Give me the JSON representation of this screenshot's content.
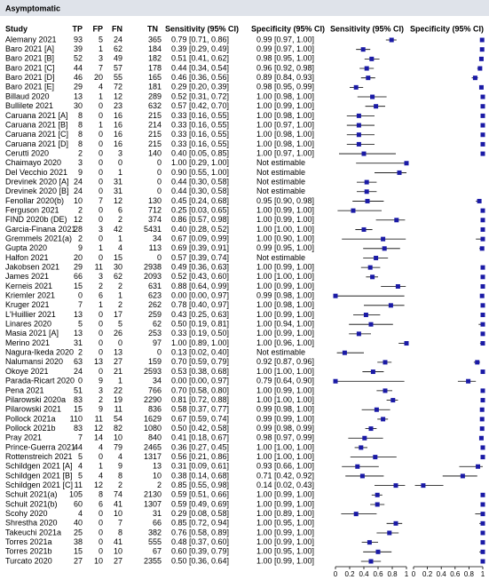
{
  "title": "Asymptomatic",
  "headers": {
    "study": "Study",
    "tp": "TP",
    "fp": "FP",
    "fn": "FN",
    "tn": "TN",
    "sens": "Sensitivity (95% CI)",
    "spec": "Specificity (95% CI)",
    "sens_plot": "Sensitivity (95% CI)",
    "spec_plot": "Specificity (95% CI)"
  },
  "axis": {
    "xlim": [
      0,
      1
    ],
    "xticks": [
      0,
      0.2,
      0.4,
      0.6,
      0.8,
      1
    ]
  },
  "rows": [
    {
      "study": "Alemany 2021",
      "tp": 93,
      "fp": 5,
      "fn": 24,
      "tn": 365,
      "sens": {
        "v": 0.79,
        "lo": 0.71,
        "hi": 0.86,
        "label": "0.79 [0.71, 0.86]"
      },
      "spec": {
        "v": 0.99,
        "lo": 0.97,
        "hi": 1.0,
        "label": "0.99 [0.97, 1.00]"
      }
    },
    {
      "study": "Baro 2021 [A]",
      "tp": 39,
      "fp": 1,
      "fn": 62,
      "tn": 184,
      "sens": {
        "v": 0.39,
        "lo": 0.29,
        "hi": 0.49,
        "label": "0.39 [0.29, 0.49]"
      },
      "spec": {
        "v": 0.99,
        "lo": 0.97,
        "hi": 1.0,
        "label": "0.99 [0.97, 1.00]"
      }
    },
    {
      "study": "Baro 2021 [B]",
      "tp": 52,
      "fp": 3,
      "fn": 49,
      "tn": 182,
      "sens": {
        "v": 0.51,
        "lo": 0.41,
        "hi": 0.62,
        "label": "0.51 [0.41, 0.62]"
      },
      "spec": {
        "v": 0.98,
        "lo": 0.95,
        "hi": 1.0,
        "label": "0.98 [0.95, 1.00]"
      }
    },
    {
      "study": "Baro 2021 [C]",
      "tp": 44,
      "fp": 7,
      "fn": 57,
      "tn": 178,
      "sens": {
        "v": 0.44,
        "lo": 0.34,
        "hi": 0.54,
        "label": "0.44 [0.34, 0.54]"
      },
      "spec": {
        "v": 0.96,
        "lo": 0.92,
        "hi": 0.98,
        "label": "0.96 [0.92, 0.98]"
      }
    },
    {
      "study": "Baro 2021 [D]",
      "tp": 46,
      "fp": 20,
      "fn": 55,
      "tn": 165,
      "sens": {
        "v": 0.46,
        "lo": 0.36,
        "hi": 0.56,
        "label": "0.46 [0.36, 0.56]"
      },
      "spec": {
        "v": 0.89,
        "lo": 0.84,
        "hi": 0.93,
        "label": "0.89 [0.84, 0.93]"
      }
    },
    {
      "study": "Baro 2021 [E]",
      "tp": 29,
      "fp": 4,
      "fn": 72,
      "tn": 181,
      "sens": {
        "v": 0.29,
        "lo": 0.2,
        "hi": 0.39,
        "label": "0.29 [0.20, 0.39]"
      },
      "spec": {
        "v": 0.98,
        "lo": 0.95,
        "hi": 0.99,
        "label": "0.98 [0.95, 0.99]"
      }
    },
    {
      "study": "Billaud 2020",
      "tp": 13,
      "fp": 1,
      "fn": 12,
      "tn": 289,
      "sens": {
        "v": 0.52,
        "lo": 0.31,
        "hi": 0.72,
        "label": "0.52 [0.31, 0.72]"
      },
      "spec": {
        "v": 1.0,
        "lo": 0.98,
        "hi": 1.0,
        "label": "1.00 [0.98, 1.00]"
      }
    },
    {
      "study": "Bullilete 2021",
      "tp": 30,
      "fp": 0,
      "fn": 23,
      "tn": 632,
      "sens": {
        "v": 0.57,
        "lo": 0.42,
        "hi": 0.7,
        "label": "0.57 [0.42, 0.70]"
      },
      "spec": {
        "v": 1.0,
        "lo": 0.99,
        "hi": 1.0,
        "label": "1.00 [0.99, 1.00]"
      }
    },
    {
      "study": "Caruana 2021 [A]",
      "tp": 8,
      "fp": 0,
      "fn": 16,
      "tn": 215,
      "sens": {
        "v": 0.33,
        "lo": 0.16,
        "hi": 0.55,
        "label": "0.33 [0.16, 0.55]"
      },
      "spec": {
        "v": 1.0,
        "lo": 0.98,
        "hi": 1.0,
        "label": "1.00 [0.98, 1.00]"
      }
    },
    {
      "study": "Caruana 2021 [B]",
      "tp": 8,
      "fp": 1,
      "fn": 16,
      "tn": 214,
      "sens": {
        "v": 0.33,
        "lo": 0.16,
        "hi": 0.55,
        "label": "0.33 [0.16, 0.55]"
      },
      "spec": {
        "v": 1.0,
        "lo": 0.97,
        "hi": 1.0,
        "label": "1.00 [0.97, 1.00]"
      }
    },
    {
      "study": "Caruana 2021 [C]",
      "tp": 8,
      "fp": 0,
      "fn": 16,
      "tn": 215,
      "sens": {
        "v": 0.33,
        "lo": 0.16,
        "hi": 0.55,
        "label": "0.33 [0.16, 0.55]"
      },
      "spec": {
        "v": 1.0,
        "lo": 0.98,
        "hi": 1.0,
        "label": "1.00 [0.98, 1.00]"
      }
    },
    {
      "study": "Caruana 2021 [D]",
      "tp": 8,
      "fp": 0,
      "fn": 16,
      "tn": 215,
      "sens": {
        "v": 0.33,
        "lo": 0.16,
        "hi": 0.55,
        "label": "0.33 [0.16, 0.55]"
      },
      "spec": {
        "v": 1.0,
        "lo": 0.98,
        "hi": 1.0,
        "label": "1.00 [0.98, 1.00]"
      }
    },
    {
      "study": "Cerutti 2020",
      "tp": 2,
      "fp": 0,
      "fn": 3,
      "tn": 140,
      "sens": {
        "v": 0.4,
        "lo": 0.05,
        "hi": 0.85,
        "label": "0.40 [0.05, 0.85]"
      },
      "spec": {
        "v": 1.0,
        "lo": 0.97,
        "hi": 1.0,
        "label": "1.00 [0.97, 1.00]"
      }
    },
    {
      "study": "Chaimayo 2020",
      "tp": 3,
      "fp": 0,
      "fn": 0,
      "tn": 0,
      "sens": {
        "v": 1.0,
        "lo": 0.29,
        "hi": 1.0,
        "label": "1.00 [0.29, 1.00]"
      },
      "spec": {
        "label": "Not estimable"
      }
    },
    {
      "study": "Del Vecchio 2021",
      "tp": 9,
      "fp": 0,
      "fn": 1,
      "tn": 0,
      "sens": {
        "v": 0.9,
        "lo": 0.55,
        "hi": 1.0,
        "label": "0.90 [0.55, 1.00]"
      },
      "spec": {
        "label": "Not estimable"
      }
    },
    {
      "study": "Drevinek 2020 [A]",
      "tp": 24,
      "fp": 0,
      "fn": 31,
      "tn": 0,
      "sens": {
        "v": 0.44,
        "lo": 0.3,
        "hi": 0.58,
        "label": "0.44 [0.30, 0.58]"
      },
      "spec": {
        "label": "Not estimable"
      }
    },
    {
      "study": "Drevinek 2020 [B]",
      "tp": 24,
      "fp": 0,
      "fn": 31,
      "tn": 0,
      "sens": {
        "v": 0.44,
        "lo": 0.3,
        "hi": 0.58,
        "label": "0.44 [0.30, 0.58]"
      },
      "spec": {
        "label": "Not estimable"
      }
    },
    {
      "study": "Fenollar 2020(b)",
      "tp": 10,
      "fp": 7,
      "fn": 12,
      "tn": 130,
      "sens": {
        "v": 0.45,
        "lo": 0.24,
        "hi": 0.68,
        "label": "0.45 [0.24, 0.68]"
      },
      "spec": {
        "v": 0.95,
        "lo": 0.9,
        "hi": 0.98,
        "label": "0.95 [0.90, 0.98]"
      }
    },
    {
      "study": "Ferguson 2021",
      "tp": 2,
      "fp": 0,
      "fn": 6,
      "tn": 712,
      "sens": {
        "v": 0.25,
        "lo": 0.03,
        "hi": 0.65,
        "label": "0.25 [0.03, 0.65]"
      },
      "spec": {
        "v": 1.0,
        "lo": 0.99,
        "hi": 1.0,
        "label": "1.00 [0.99, 1.00]"
      }
    },
    {
      "study": "FIND 2020b (DE)",
      "tp": 12,
      "fp": 0,
      "fn": 2,
      "tn": 374,
      "sens": {
        "v": 0.86,
        "lo": 0.57,
        "hi": 0.98,
        "label": "0.86 [0.57, 0.98]"
      },
      "spec": {
        "v": 1.0,
        "lo": 0.99,
        "hi": 1.0,
        "label": "1.00 [0.99, 1.00]"
      }
    },
    {
      "study": "Garcia-Finana 2021",
      "tp": 28,
      "fp": 3,
      "fn": 42,
      "tn": 5431,
      "sens": {
        "v": 0.4,
        "lo": 0.28,
        "hi": 0.52,
        "label": "0.40 [0.28, 0.52]"
      },
      "spec": {
        "v": 1.0,
        "lo": 1.0,
        "hi": 1.0,
        "label": "1.00 [1.00, 1.00]"
      }
    },
    {
      "study": "Gremmels 2021(a)",
      "tp": 2,
      "fp": 0,
      "fn": 1,
      "tn": 34,
      "sens": {
        "v": 0.67,
        "lo": 0.09,
        "hi": 0.99,
        "label": "0.67 [0.09, 0.99]"
      },
      "spec": {
        "v": 1.0,
        "lo": 0.9,
        "hi": 1.0,
        "label": "1.00 [0.90, 1.00]"
      }
    },
    {
      "study": "Gupta 2020",
      "tp": 9,
      "fp": 1,
      "fn": 4,
      "tn": 113,
      "sens": {
        "v": 0.69,
        "lo": 0.39,
        "hi": 0.91,
        "label": "0.69 [0.39, 0.91]"
      },
      "spec": {
        "v": 0.99,
        "lo": 0.95,
        "hi": 1.0,
        "label": "0.99 [0.95, 1.00]"
      }
    },
    {
      "study": "Halfon 2021",
      "tp": 20,
      "fp": 0,
      "fn": 15,
      "tn": 0,
      "sens": {
        "v": 0.57,
        "lo": 0.39,
        "hi": 0.74,
        "label": "0.57 [0.39, 0.74]"
      },
      "spec": {
        "label": "Not estimable"
      }
    },
    {
      "study": "Jakobsen 2021",
      "tp": 29,
      "fp": 11,
      "fn": 30,
      "tn": 2938,
      "sens": {
        "v": 0.49,
        "lo": 0.36,
        "hi": 0.63,
        "label": "0.49 [0.36, 0.63]"
      },
      "spec": {
        "v": 1.0,
        "lo": 0.99,
        "hi": 1.0,
        "label": "1.00 [0.99, 1.00]"
      }
    },
    {
      "study": "James 2021",
      "tp": 66,
      "fp": 3,
      "fn": 62,
      "tn": 2093,
      "sens": {
        "v": 0.52,
        "lo": 0.43,
        "hi": 0.6,
        "label": "0.52 [0.43, 0.60]"
      },
      "spec": {
        "v": 1.0,
        "lo": 1.0,
        "hi": 1.0,
        "label": "1.00 [1.00, 1.00]"
      }
    },
    {
      "study": "Kerneis 2021",
      "tp": 15,
      "fp": 2,
      "fn": 2,
      "tn": 631,
      "sens": {
        "v": 0.88,
        "lo": 0.64,
        "hi": 0.99,
        "label": "0.88 [0.64, 0.99]"
      },
      "spec": {
        "v": 1.0,
        "lo": 0.99,
        "hi": 1.0,
        "label": "1.00 [0.99, 1.00]"
      }
    },
    {
      "study": "Kriemler 2021",
      "tp": 0,
      "fp": 6,
      "fn": 1,
      "tn": 623,
      "sens": {
        "v": 0.0,
        "lo": 0.0,
        "hi": 0.97,
        "label": "0.00 [0.00, 0.97]"
      },
      "spec": {
        "v": 0.99,
        "lo": 0.98,
        "hi": 1.0,
        "label": "0.99 [0.98, 1.00]"
      }
    },
    {
      "study": "Kruger 2021",
      "tp": 7,
      "fp": 1,
      "fn": 2,
      "tn": 262,
      "sens": {
        "v": 0.78,
        "lo": 0.4,
        "hi": 0.97,
        "label": "0.78 [0.40, 0.97]"
      },
      "spec": {
        "v": 1.0,
        "lo": 0.98,
        "hi": 1.0,
        "label": "1.00 [0.98, 1.00]"
      }
    },
    {
      "study": "L'Huillier 2021",
      "tp": 13,
      "fp": 0,
      "fn": 17,
      "tn": 259,
      "sens": {
        "v": 0.43,
        "lo": 0.25,
        "hi": 0.63,
        "label": "0.43 [0.25, 0.63]"
      },
      "spec": {
        "v": 1.0,
        "lo": 0.99,
        "hi": 1.0,
        "label": "1.00 [0.99, 1.00]"
      }
    },
    {
      "study": "Linares 2020",
      "tp": 5,
      "fp": 0,
      "fn": 5,
      "tn": 62,
      "sens": {
        "v": 0.5,
        "lo": 0.19,
        "hi": 0.81,
        "label": "0.50 [0.19, 0.81]"
      },
      "spec": {
        "v": 1.0,
        "lo": 0.94,
        "hi": 1.0,
        "label": "1.00 [0.94, 1.00]"
      }
    },
    {
      "study": "Masia 2021 [A]",
      "tp": 13,
      "fp": 0,
      "fn": 26,
      "tn": 253,
      "sens": {
        "v": 0.33,
        "lo": 0.19,
        "hi": 0.5,
        "label": "0.33 [0.19, 0.50]"
      },
      "spec": {
        "v": 1.0,
        "lo": 0.99,
        "hi": 1.0,
        "label": "1.00 [0.99, 1.00]"
      }
    },
    {
      "study": "Merino 2021",
      "tp": 31,
      "fp": 0,
      "fn": 0,
      "tn": 97,
      "sens": {
        "v": 1.0,
        "lo": 0.89,
        "hi": 1.0,
        "label": "1.00 [0.89, 1.00]"
      },
      "spec": {
        "v": 1.0,
        "lo": 0.96,
        "hi": 1.0,
        "label": "1.00 [0.96, 1.00]"
      }
    },
    {
      "study": "Nagura-Ikeda 2020",
      "tp": 2,
      "fp": 0,
      "fn": 13,
      "tn": 0,
      "sens": {
        "v": 0.13,
        "lo": 0.02,
        "hi": 0.4,
        "label": "0.13 [0.02, 0.40]"
      },
      "spec": {
        "label": "Not estimable"
      }
    },
    {
      "study": "Nalumansi 2020",
      "tp": 63,
      "fp": 13,
      "fn": 27,
      "tn": 159,
      "sens": {
        "v": 0.7,
        "lo": 0.59,
        "hi": 0.79,
        "label": "0.70 [0.59, 0.79]"
      },
      "spec": {
        "v": 0.92,
        "lo": 0.87,
        "hi": 0.96,
        "label": "0.92 [0.87, 0.96]"
      }
    },
    {
      "study": "Okoye 2021",
      "tp": 24,
      "fp": 0,
      "fn": 21,
      "tn": 2593,
      "sens": {
        "v": 0.53,
        "lo": 0.38,
        "hi": 0.68,
        "label": "0.53 [0.38, 0.68]"
      },
      "spec": {
        "v": 1.0,
        "lo": 1.0,
        "hi": 1.0,
        "label": "1.00 [1.00, 1.00]"
      }
    },
    {
      "study": "Parada-Ricart 2020",
      "tp": 0,
      "fp": 9,
      "fn": 1,
      "tn": 34,
      "sens": {
        "v": 0.0,
        "lo": 0.0,
        "hi": 0.97,
        "label": "0.00 [0.00, 0.97]"
      },
      "spec": {
        "v": 0.79,
        "lo": 0.64,
        "hi": 0.9,
        "label": "0.79 [0.64, 0.90]"
      }
    },
    {
      "study": "Pena 2021",
      "tp": 51,
      "fp": 3,
      "fn": 22,
      "tn": 766,
      "sens": {
        "v": 0.7,
        "lo": 0.58,
        "hi": 0.8,
        "label": "0.70 [0.58, 0.80]"
      },
      "spec": {
        "v": 1.0,
        "lo": 0.99,
        "hi": 1.0,
        "label": "1.00 [0.99, 1.00]"
      }
    },
    {
      "study": "Pilarowski 2020a",
      "tp": 83,
      "fp": 2,
      "fn": 19,
      "tn": 2290,
      "sens": {
        "v": 0.81,
        "lo": 0.72,
        "hi": 0.88,
        "label": "0.81 [0.72, 0.88]"
      },
      "spec": {
        "v": 1.0,
        "lo": 1.0,
        "hi": 1.0,
        "label": "1.00 [1.00, 1.00]"
      }
    },
    {
      "study": "Pilarowski 2021",
      "tp": 15,
      "fp": 9,
      "fn": 11,
      "tn": 836,
      "sens": {
        "v": 0.58,
        "lo": 0.37,
        "hi": 0.77,
        "label": "0.58 [0.37, 0.77]"
      },
      "spec": {
        "v": 0.99,
        "lo": 0.98,
        "hi": 1.0,
        "label": "0.99 [0.98, 1.00]"
      }
    },
    {
      "study": "Pollock 2021a",
      "tp": 110,
      "fp": 11,
      "fn": 54,
      "tn": 1629,
      "sens": {
        "v": 0.67,
        "lo": 0.59,
        "hi": 0.74,
        "label": "0.67 [0.59, 0.74]"
      },
      "spec": {
        "v": 0.99,
        "lo": 0.99,
        "hi": 1.0,
        "label": "0.99 [0.99, 1.00]"
      }
    },
    {
      "study": "Pollock 2021b",
      "tp": 83,
      "fp": 12,
      "fn": 82,
      "tn": 1080,
      "sens": {
        "v": 0.5,
        "lo": 0.42,
        "hi": 0.58,
        "label": "0.50 [0.42, 0.58]"
      },
      "spec": {
        "v": 0.99,
        "lo": 0.98,
        "hi": 0.99,
        "label": "0.99 [0.98, 0.99]"
      }
    },
    {
      "study": "Pray 2021",
      "tp": 7,
      "fp": 14,
      "fn": 10,
      "tn": 840,
      "sens": {
        "v": 0.41,
        "lo": 0.18,
        "hi": 0.67,
        "label": "0.41 [0.18, 0.67]"
      },
      "spec": {
        "v": 0.98,
        "lo": 0.97,
        "hi": 0.99,
        "label": "0.98 [0.97, 0.99]"
      }
    },
    {
      "study": "Prince-Guerra 2021",
      "tp": 44,
      "fp": 4,
      "fn": 79,
      "tn": 2465,
      "sens": {
        "v": 0.36,
        "lo": 0.27,
        "hi": 0.45,
        "label": "0.36 [0.27, 0.45]"
      },
      "spec": {
        "v": 1.0,
        "lo": 1.0,
        "hi": 1.0,
        "label": "1.00 [1.00, 1.00]"
      }
    },
    {
      "study": "Rottenstreich 2021",
      "tp": 5,
      "fp": 0,
      "fn": 4,
      "tn": 1317,
      "sens": {
        "v": 0.56,
        "lo": 0.21,
        "hi": 0.86,
        "label": "0.56 [0.21, 0.86]"
      },
      "spec": {
        "v": 1.0,
        "lo": 1.0,
        "hi": 1.0,
        "label": "1.00 [1.00, 1.00]"
      }
    },
    {
      "study": "Schildgen 2021 [A]",
      "tp": 4,
      "fp": 1,
      "fn": 9,
      "tn": 13,
      "sens": {
        "v": 0.31,
        "lo": 0.09,
        "hi": 0.61,
        "label": "0.31 [0.09, 0.61]"
      },
      "spec": {
        "v": 0.93,
        "lo": 0.66,
        "hi": 1.0,
        "label": "0.93 [0.66, 1.00]"
      }
    },
    {
      "study": "Schildgen 2021 [B]",
      "tp": 5,
      "fp": 4,
      "fn": 8,
      "tn": 10,
      "sens": {
        "v": 0.38,
        "lo": 0.14,
        "hi": 0.68,
        "label": "0.38 [0.14, 0.68]"
      },
      "spec": {
        "v": 0.71,
        "lo": 0.42,
        "hi": 0.92,
        "label": "0.71 [0.42, 0.92]"
      }
    },
    {
      "study": "Schildgen 2021 [C]",
      "tp": 11,
      "fp": 12,
      "fn": 2,
      "tn": 2,
      "sens": {
        "v": 0.85,
        "lo": 0.55,
        "hi": 0.98,
        "label": "0.85 [0.55, 0.98]"
      },
      "spec": {
        "v": 0.14,
        "lo": 0.02,
        "hi": 0.43,
        "label": "0.14 [0.02, 0.43]"
      }
    },
    {
      "study": "Schuit 2021(a)",
      "tp": 105,
      "fp": 8,
      "fn": 74,
      "tn": 2130,
      "sens": {
        "v": 0.59,
        "lo": 0.51,
        "hi": 0.66,
        "label": "0.59 [0.51, 0.66]"
      },
      "spec": {
        "v": 1.0,
        "lo": 0.99,
        "hi": 1.0,
        "label": "1.00 [0.99, 1.00]"
      }
    },
    {
      "study": "Schuit 2021(b)",
      "tp": 60,
      "fp": 6,
      "fn": 41,
      "tn": 1307,
      "sens": {
        "v": 0.59,
        "lo": 0.49,
        "hi": 0.69,
        "label": "0.59 [0.49, 0.69]"
      },
      "spec": {
        "v": 1.0,
        "lo": 0.99,
        "hi": 1.0,
        "label": "1.00 [0.99, 1.00]"
      }
    },
    {
      "study": "Scohy 2020",
      "tp": 4,
      "fp": 0,
      "fn": 10,
      "tn": 31,
      "sens": {
        "v": 0.29,
        "lo": 0.08,
        "hi": 0.58,
        "label": "0.29 [0.08, 0.58]"
      },
      "spec": {
        "v": 1.0,
        "lo": 0.89,
        "hi": 1.0,
        "label": "1.00 [0.89, 1.00]"
      }
    },
    {
      "study": "Shrestha 2020",
      "tp": 40,
      "fp": 0,
      "fn": 7,
      "tn": 66,
      "sens": {
        "v": 0.85,
        "lo": 0.72,
        "hi": 0.94,
        "label": "0.85 [0.72, 0.94]"
      },
      "spec": {
        "v": 1.0,
        "lo": 0.95,
        "hi": 1.0,
        "label": "1.00 [0.95, 1.00]"
      }
    },
    {
      "study": "Takeuchi 2021a",
      "tp": 25,
      "fp": 0,
      "fn": 8,
      "tn": 382,
      "sens": {
        "v": 0.76,
        "lo": 0.58,
        "hi": 0.89,
        "label": "0.76 [0.58, 0.89]"
      },
      "spec": {
        "v": 1.0,
        "lo": 0.99,
        "hi": 1.0,
        "label": "1.00 [0.99, 1.00]"
      }
    },
    {
      "study": "Torres 2021a",
      "tp": 38,
      "fp": 0,
      "fn": 41,
      "tn": 555,
      "sens": {
        "v": 0.48,
        "lo": 0.37,
        "hi": 0.6,
        "label": "0.48 [0.37, 0.60]"
      },
      "spec": {
        "v": 1.0,
        "lo": 0.99,
        "hi": 1.0,
        "label": "1.00 [0.99, 1.00]"
      }
    },
    {
      "study": "Torres 2021b",
      "tp": 15,
      "fp": 0,
      "fn": 10,
      "tn": 67,
      "sens": {
        "v": 0.6,
        "lo": 0.39,
        "hi": 0.79,
        "label": "0.60 [0.39, 0.79]"
      },
      "spec": {
        "v": 1.0,
        "lo": 0.95,
        "hi": 1.0,
        "label": "1.00 [0.95, 1.00]"
      }
    },
    {
      "study": "Turcato 2020",
      "tp": 27,
      "fp": 10,
      "fn": 27,
      "tn": 2355,
      "sens": {
        "v": 0.5,
        "lo": 0.36,
        "hi": 0.64,
        "label": "0.50 [0.36, 0.64]"
      },
      "spec": {
        "v": 1.0,
        "lo": 0.99,
        "hi": 1.0,
        "label": "1.00 [0.99, 1.00]"
      }
    }
  ]
}
